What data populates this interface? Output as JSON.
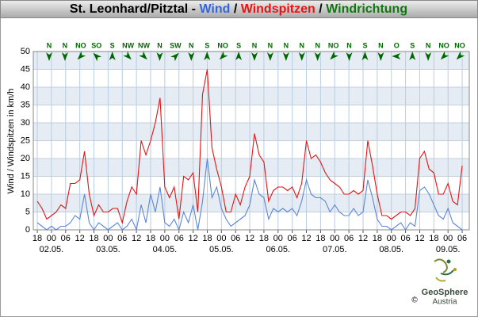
{
  "chart_data": {
    "type": "line",
    "title_parts": [
      {
        "text": "St. Leonhard/Pitztal - ",
        "color": "#000000"
      },
      {
        "text": "Wind",
        "color": "#3366dd"
      },
      {
        "text": " / ",
        "color": "#000000"
      },
      {
        "text": "Windspitzen",
        "color": "#ee1111"
      },
      {
        "text": " / ",
        "color": "#000000"
      },
      {
        "text": "Windrichtung",
        "color": "#117711"
      }
    ],
    "y_label": "Wind / Windspitzen in km/h",
    "x": [
      0,
      2,
      4,
      6,
      8,
      10,
      12,
      14,
      16,
      18,
      20,
      22,
      24,
      26,
      28,
      30,
      32,
      34,
      36,
      38,
      40,
      42,
      44,
      46,
      48,
      50,
      52,
      54,
      56,
      58,
      60,
      62,
      64,
      66,
      68,
      70,
      72,
      74,
      76,
      78,
      80,
      82,
      84,
      86,
      88,
      90,
      92,
      94,
      96,
      98,
      100,
      102,
      104,
      106,
      108,
      110,
      112,
      114,
      116,
      118,
      120,
      122,
      124,
      126,
      128,
      130,
      132,
      134,
      136,
      138,
      140,
      142,
      144,
      146,
      148,
      150,
      152,
      154,
      156,
      158,
      160,
      162,
      164,
      166,
      168,
      170,
      172,
      174,
      176,
      178,
      180
    ],
    "series": [
      {
        "name": "Wind",
        "color": "#5b87d8",
        "values": [
          2,
          1,
          0,
          1,
          0,
          1,
          1,
          2,
          4,
          3,
          10,
          2,
          0,
          2,
          1,
          0,
          1,
          2,
          0,
          1,
          3,
          0,
          7,
          2,
          10,
          5,
          12,
          2,
          1,
          3,
          0,
          5,
          2,
          7,
          0,
          8,
          20,
          9,
          12,
          6,
          3,
          1,
          2,
          3,
          4,
          7,
          14,
          10,
          9,
          3,
          6,
          5,
          6,
          5,
          6,
          4,
          8,
          14,
          10,
          9,
          9,
          8,
          5,
          7,
          5,
          4,
          4,
          6,
          4,
          5,
          14,
          9,
          3,
          1,
          1,
          0,
          1,
          2,
          0,
          2,
          1,
          11,
          12,
          10,
          7,
          4,
          3,
          6,
          2,
          1,
          0
        ]
      },
      {
        "name": "Windspitzen",
        "color": "#e31414",
        "values": [
          8,
          6,
          3,
          4,
          5,
          7,
          6,
          13,
          13,
          14,
          22,
          10,
          4,
          7,
          5,
          5,
          6,
          6,
          2,
          8,
          12,
          10,
          25,
          21,
          25,
          30,
          37,
          12,
          9,
          12,
          3,
          15,
          14,
          16,
          5,
          38,
          45,
          23,
          17,
          12,
          5,
          5,
          10,
          7,
          12,
          15,
          27,
          21,
          19,
          8,
          11,
          12,
          12,
          11,
          12,
          9,
          13,
          25,
          20,
          21,
          19,
          16,
          14,
          13,
          12,
          10,
          10,
          11,
          10,
          11,
          25,
          18,
          10,
          4,
          4,
          3,
          4,
          5,
          5,
          4,
          6,
          20,
          22,
          17,
          16,
          10,
          10,
          13,
          8,
          7,
          18
        ]
      }
    ],
    "wind_direction": [
      "N",
      "N",
      "NO",
      "SO",
      "S",
      "NW",
      "NW",
      "N",
      "SW",
      "N",
      "S",
      "NO",
      "S",
      "N",
      "N",
      "N",
      "N",
      "N",
      "NO",
      "N",
      "S",
      "N",
      "O",
      "S",
      "N",
      "NO",
      "NO"
    ],
    "direction_color": "#006600",
    "xlim": [
      -1.7,
      183
    ],
    "xticks": [
      {
        "value": 0,
        "label": "18"
      },
      {
        "value": 6,
        "label": "00"
      },
      {
        "value": 12,
        "label": "06"
      },
      {
        "value": 18,
        "label": "12"
      },
      {
        "value": 24,
        "label": "18"
      },
      {
        "value": 30,
        "label": "00"
      },
      {
        "value": 36,
        "label": "06"
      },
      {
        "value": 42,
        "label": "12"
      },
      {
        "value": 48,
        "label": "18"
      },
      {
        "value": 54,
        "label": "00"
      },
      {
        "value": 60,
        "label": "06"
      },
      {
        "value": 66,
        "label": "12"
      },
      {
        "value": 72,
        "label": "18"
      },
      {
        "value": 78,
        "label": "00"
      },
      {
        "value": 84,
        "label": "06"
      },
      {
        "value": 90,
        "label": "12"
      },
      {
        "value": 96,
        "label": "18"
      },
      {
        "value": 102,
        "label": "00"
      },
      {
        "value": 108,
        "label": "06"
      },
      {
        "value": 114,
        "label": "12"
      },
      {
        "value": 120,
        "label": "18"
      },
      {
        "value": 126,
        "label": "00"
      },
      {
        "value": 132,
        "label": "06"
      },
      {
        "value": 138,
        "label": "12"
      },
      {
        "value": 144,
        "label": "18"
      },
      {
        "value": 150,
        "label": "00"
      },
      {
        "value": 156,
        "label": "06"
      },
      {
        "value": 162,
        "label": "12"
      },
      {
        "value": 168,
        "label": "18"
      },
      {
        "value": 174,
        "label": "00"
      },
      {
        "value": 180,
        "label": "06"
      }
    ],
    "date_ticks": [
      {
        "value": 6,
        "label": "02.05."
      },
      {
        "value": 30,
        "label": "03.05."
      },
      {
        "value": 54,
        "label": "04.05."
      },
      {
        "value": 78,
        "label": "05.05."
      },
      {
        "value": 102,
        "label": "06.05."
      },
      {
        "value": 126,
        "label": "07.05."
      },
      {
        "value": 150,
        "label": "08.05."
      },
      {
        "value": 174,
        "label": "09.05."
      }
    ],
    "ylim": [
      0,
      50
    ],
    "yticks": [
      0,
      5,
      10,
      15,
      20,
      25,
      30,
      35,
      40,
      45,
      50
    ],
    "grid": true,
    "logo": {
      "name": "GeoSphere",
      "country": "Austria",
      "copyright": "©"
    }
  }
}
